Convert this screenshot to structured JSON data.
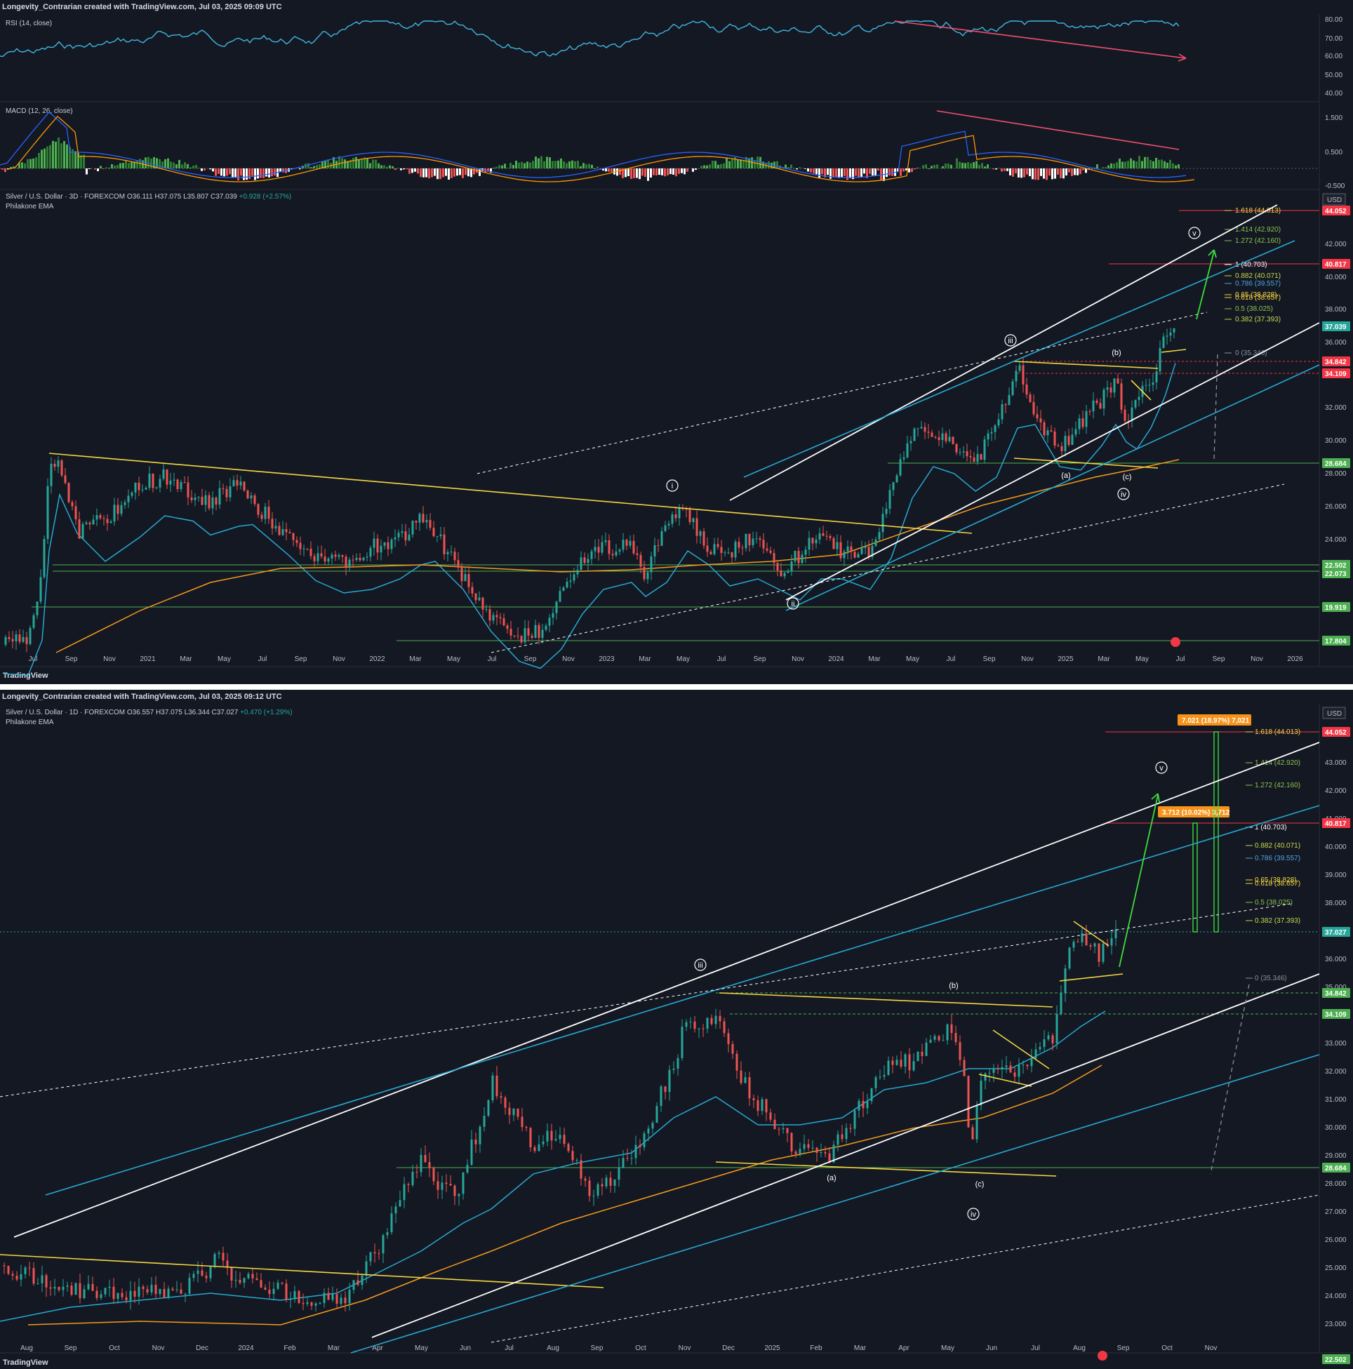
{
  "top_chart": {
    "credit": "Longevity_Contrarian created with TradingView.com, Jul 03, 2025 09:09 UTC",
    "symbol_line": {
      "name": "Silver / U.S. Dollar · 3D · FOREXCOM",
      "open": "O36.111",
      "high": "H37.075",
      "low": "L35.807",
      "close": "C37.039",
      "change": "+0.928 (+2.57%)"
    },
    "indicator": "Philakone EMA",
    "rsi_label": "RSI (14, close)",
    "macd_label": "MACD (12, 26, close)",
    "currency": "USD",
    "rsi_ticks": [
      "80.00",
      "70.00",
      "60.00",
      "50.00",
      "40.00"
    ],
    "macd_ticks": [
      "1.500",
      "0.500",
      "-0.500"
    ],
    "price_ticks": [
      "42.000",
      "40.000",
      "38.000",
      "36.000",
      "32.000",
      "30.000",
      "28.000",
      "26.000",
      "24.000"
    ],
    "price_tags": [
      {
        "value": "44.052",
        "color": "#f23645"
      },
      {
        "value": "40.817",
        "color": "#f23645"
      },
      {
        "value": "37.039",
        "color": "#26a69a"
      },
      {
        "value": "34.842",
        "color": "#f23645"
      },
      {
        "value": "34.109",
        "color": "#f23645"
      },
      {
        "value": "28.684",
        "color": "#4caf50"
      },
      {
        "value": "22.502",
        "color": "#4caf50"
      },
      {
        "value": "22.073",
        "color": "#4caf50"
      },
      {
        "value": "19.919",
        "color": "#4caf50"
      },
      {
        "value": "17.804",
        "color": "#4caf50"
      }
    ],
    "fib_levels": [
      {
        "label": "1.618 (44.013)",
        "color": "#f5d742"
      },
      {
        "label": "1.414 (42.920)",
        "color": "#8bc34a"
      },
      {
        "label": "1.272 (42.160)",
        "color": "#8bc34a"
      },
      {
        "label": "1 (40.703)",
        "color": "#ffffff"
      },
      {
        "label": "0.882 (40.071)",
        "color": "#c6d94e"
      },
      {
        "label": "0.786 (39.557)",
        "color": "#4fa3e0"
      },
      {
        "label": "0.65 (38.828)",
        "color": "#f5d742"
      },
      {
        "label": "0.618 (38.657)",
        "color": "#f5d742"
      },
      {
        "label": "0.5 (38.025)",
        "color": "#8bc34a"
      },
      {
        "label": "0.382 (37.393)",
        "color": "#c6d94e"
      },
      {
        "label": "0 (35.346)",
        "color": "#8a8f99"
      }
    ],
    "time_ticks": [
      "Jul",
      "Sep",
      "Nov",
      "2021",
      "Mar",
      "May",
      "Jul",
      "Sep",
      "Nov",
      "2022",
      "Mar",
      "May",
      "Jul",
      "Sep",
      "Nov",
      "2023",
      "Mar",
      "May",
      "Jul",
      "Sep",
      "Nov",
      "2024",
      "Mar",
      "May",
      "Jul",
      "Sep",
      "Nov",
      "2025",
      "Mar",
      "May",
      "Jul",
      "Sep",
      "Nov",
      "2026"
    ],
    "waves": [
      "i",
      "ii",
      "iii",
      "iv",
      "v",
      "(a)",
      "(b)",
      "(c)"
    ],
    "footer": "TradingView"
  },
  "bottom_chart": {
    "credit": "Longevity_Contrarian created with TradingView.com, Jul 03, 2025 09:12 UTC",
    "symbol_line": {
      "name": "Silver / U.S. Dollar · 1D · FOREXCOM",
      "open": "O36.557",
      "high": "H37.075",
      "low": "L36.344",
      "close": "C37.027",
      "change": "+0.470 (+1.29%)"
    },
    "indicator": "Philakone EMA",
    "currency": "USD",
    "price_ticks": [
      "43.000",
      "42.000",
      "41.000",
      "40.000",
      "39.000",
      "38.000",
      "36.000",
      "35.000",
      "33.000",
      "32.000",
      "31.000",
      "30.000",
      "29.000",
      "28.000",
      "27.000",
      "26.000",
      "25.000",
      "24.000",
      "23.000"
    ],
    "price_tags": [
      {
        "value": "44.052",
        "color": "#f23645"
      },
      {
        "value": "40.817",
        "color": "#f23645"
      },
      {
        "value": "37.027",
        "color": "#26a69a"
      },
      {
        "value": "34.842",
        "color": "#4caf50"
      },
      {
        "value": "34.109",
        "color": "#4caf50"
      },
      {
        "value": "28.684",
        "color": "#4caf50"
      },
      {
        "value": "22.502",
        "color": "#4caf50"
      }
    ],
    "measure_boxes": [
      "7.021 (18.97%) 7,021",
      "3.712 (10.02%) 3,712"
    ],
    "fib_levels": [
      {
        "label": "1.618 (44.013)",
        "color": "#f5d742"
      },
      {
        "label": "1.414 (42.920)",
        "color": "#8bc34a"
      },
      {
        "label": "1.272 (42.160)",
        "color": "#8bc34a"
      },
      {
        "label": "1 (40.703)",
        "color": "#ffffff"
      },
      {
        "label": "0.882 (40.071)",
        "color": "#c6d94e"
      },
      {
        "label": "0.786 (39.557)",
        "color": "#4fa3e0"
      },
      {
        "label": "0.65 (38.828)",
        "color": "#f5d742"
      },
      {
        "label": "0.618 (38.657)",
        "color": "#f5d742"
      },
      {
        "label": "0.5 (38.025)",
        "color": "#8bc34a"
      },
      {
        "label": "0.382 (37.393)",
        "color": "#c6d94e"
      },
      {
        "label": "0 (35.346)",
        "color": "#8a8f99"
      }
    ],
    "time_ticks": [
      "Aug",
      "Sep",
      "Oct",
      "Nov",
      "Dec",
      "2024",
      "Feb",
      "Mar",
      "Apr",
      "May",
      "Jun",
      "Jul",
      "Aug",
      "Sep",
      "Oct",
      "Nov",
      "Dec",
      "2025",
      "Feb",
      "Mar",
      "Apr",
      "May",
      "Jun",
      "Jul",
      "Aug",
      "Sep",
      "Oct",
      "Nov"
    ],
    "waves": [
      "iii",
      "iv",
      "v",
      "(a)",
      "(b)",
      "(c)"
    ],
    "footer": "TradingView"
  },
  "chart_data": [
    {
      "type": "line",
      "title": "",
      "series": [
        {
          "name": "Silver / U.S. Dollar · 3D · FOREXCOM",
          "x": [
            "2020-07",
            "2020-08",
            "2021-02",
            "2021-06",
            "2022-03",
            "2022-09",
            "2023-04",
            "2023-10",
            "2024-05",
            "2024-10",
            "2024-12",
            "2025-03",
            "2025-04",
            "2025-07"
          ],
          "values": [
            18.5,
            29.0,
            28.5,
            28.0,
            26.5,
            18.0,
            26.0,
            20.5,
            32.5,
            34.8,
            29.0,
            34.1,
            29.0,
            37.0
          ]
        }
      ],
      "xlabel": "",
      "ylabel": "",
      "ylim": [
        17,
        45
      ],
      "grid": false
    },
    {
      "type": "line",
      "title": "",
      "series": [
        {
          "name": "Silver / U.S. Dollar · 1D · FOREXCOM",
          "x": [
            "2023-08",
            "2023-12",
            "2024-02",
            "2024-05",
            "2024-08",
            "2024-10",
            "2024-12",
            "2025-03",
            "2025-04",
            "2025-06",
            "2025-07"
          ],
          "values": [
            24.2,
            25.5,
            22.3,
            32.5,
            26.7,
            34.8,
            28.8,
            34.1,
            28.8,
            36.5,
            37.0
          ]
        }
      ],
      "xlabel": "",
      "ylabel": "",
      "ylim": [
        22,
        45
      ],
      "grid": false
    }
  ]
}
